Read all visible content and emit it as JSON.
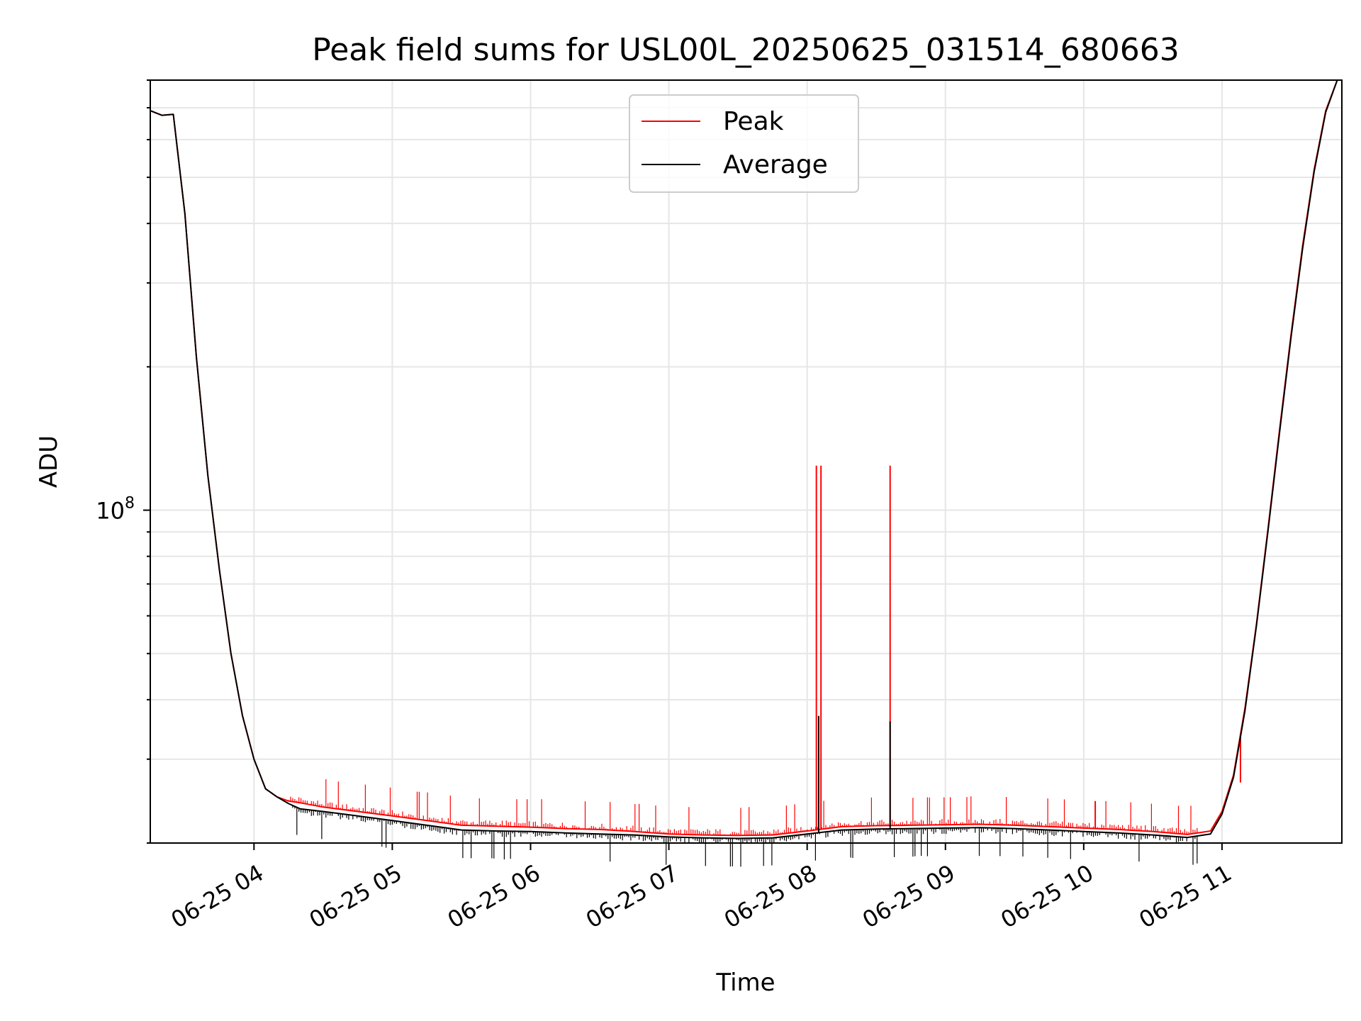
{
  "chart_data": {
    "type": "line",
    "title": "Peak field sums for USL00L_20250625_031514_680663",
    "xlabel": "Time",
    "ylabel": "ADU",
    "x_scale": "time",
    "y_scale": "log",
    "xlim": [
      "2025-06-25 03:15",
      "2025-06-25 11:52"
    ],
    "ylim": [
      20000000,
      800000000
    ],
    "grid": true,
    "legend_position": "top-center",
    "x_ticks": [
      "06-25 04",
      "06-25 05",
      "06-25 06",
      "06-25 07",
      "06-25 08",
      "06-25 09",
      "06-25 10",
      "06-25 11"
    ],
    "y_ticks": [
      {
        "value": 100000000,
        "base": "10",
        "exponent": "8"
      }
    ],
    "x": [
      "03:15",
      "03:20",
      "03:25",
      "03:30",
      "03:35",
      "03:40",
      "03:45",
      "03:50",
      "03:55",
      "04:00",
      "04:05",
      "04:10",
      "04:15",
      "04:20",
      "04:30",
      "04:45",
      "05:00",
      "05:15",
      "05:30",
      "05:45",
      "06:00",
      "06:15",
      "06:30",
      "06:45",
      "07:00",
      "07:15",
      "07:30",
      "07:45",
      "08:00",
      "08:15",
      "08:30",
      "08:45",
      "09:00",
      "09:15",
      "09:30",
      "09:45",
      "10:00",
      "10:15",
      "10:30",
      "10:45",
      "10:55",
      "11:00",
      "11:05",
      "11:10",
      "11:15",
      "11:20",
      "11:25",
      "11:30",
      "11:35",
      "11:40",
      "11:45",
      "11:50"
    ],
    "series": [
      {
        "name": "Peak",
        "color": "#ff0000",
        "values": [
          690000000,
          675000000,
          678000000,
          420000000,
          210000000,
          118000000,
          75000000,
          50000000,
          37000000,
          30000000,
          26000000,
          25000000,
          24500000,
          24300000,
          23800000,
          23300000,
          22800000,
          22300000,
          21800000,
          21700000,
          21600000,
          21450000,
          21350000,
          21150000,
          20900000,
          20800000,
          20750000,
          20800000,
          21200000,
          21650000,
          21750000,
          21800000,
          21850000,
          21900000,
          21800000,
          21650000,
          21500000,
          21350000,
          21150000,
          20850000,
          21200000,
          23300000,
          27800000,
          38500000,
          58000000,
          92000000,
          148000000,
          235000000,
          360000000,
          520000000,
          690000000,
          800000000
        ],
        "spikes": [
          {
            "time": "08:04",
            "value": 124000000
          },
          {
            "time": "08:06",
            "value": 124000000
          },
          {
            "time": "08:36",
            "value": 124000000
          },
          {
            "time": "10:05",
            "value": 24500000
          },
          {
            "time": "11:08",
            "value": 26800000
          }
        ]
      },
      {
        "name": "Average",
        "color": "#000000",
        "values": [
          690000000,
          675000000,
          678000000,
          420000000,
          210000000,
          118000000,
          75000000,
          50000000,
          37000000,
          30000000,
          26000000,
          25000000,
          24200000,
          23600000,
          23300000,
          22800000,
          22300000,
          21800000,
          21300000,
          21200000,
          21150000,
          21000000,
          20900000,
          20800000,
          20600000,
          20500000,
          20450000,
          20500000,
          20900000,
          21300000,
          21400000,
          21450000,
          21500000,
          21550000,
          21450000,
          21300000,
          21150000,
          21000000,
          20800000,
          20550000,
          20900000,
          23000000,
          27500000,
          38000000,
          57500000,
          91000000,
          146000000,
          232000000,
          355000000,
          515000000,
          685000000,
          800000000
        ],
        "spikes": [
          {
            "time": "08:05",
            "value": 37000000
          },
          {
            "time": "08:36",
            "value": 36000000
          }
        ]
      }
    ]
  }
}
